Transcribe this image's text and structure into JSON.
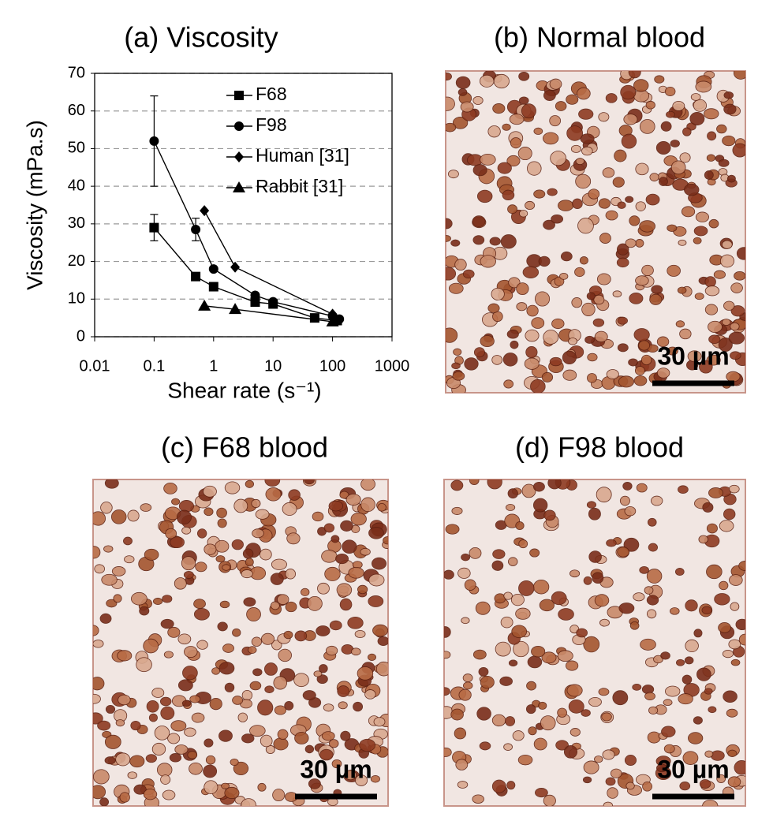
{
  "chart_data": {
    "type": "scatter",
    "title": "(a) Viscosity",
    "xlabel": "Shear rate (s⁻¹)",
    "ylabel": "Viscosity (mPa.s)",
    "xscale": "log",
    "xlim": [
      0.01,
      1000
    ],
    "xticks": [
      0.01,
      0.1,
      1,
      10,
      100,
      1000
    ],
    "ylim": [
      0,
      70
    ],
    "yticks": [
      0,
      10,
      20,
      30,
      40,
      50,
      60,
      70
    ],
    "grid": "y",
    "lines": true,
    "legend": "upper right",
    "series": [
      {
        "name": "F68",
        "marker": "square",
        "color": "#000000",
        "x": [
          0.1,
          0.5,
          1,
          5,
          10,
          50,
          120
        ],
        "values": [
          29,
          16,
          13.3,
          9.2,
          8.7,
          5,
          4.3
        ],
        "errors": [
          3.5,
          null,
          null,
          null,
          null,
          null,
          null
        ]
      },
      {
        "name": "F98",
        "marker": "circle",
        "color": "#000000",
        "x": [
          0.1,
          0.5,
          1,
          5,
          10,
          100,
          130
        ],
        "values": [
          52,
          28.5,
          18,
          11,
          9.3,
          5.5,
          4.7
        ],
        "errors": [
          12,
          3,
          null,
          null,
          null,
          null,
          null
        ]
      },
      {
        "name": "Human [31]",
        "marker": "diamond",
        "color": "#000000",
        "x": [
          0.7,
          2.3,
          100
        ],
        "values": [
          33.5,
          18.5,
          6
        ],
        "errors": [
          null,
          null,
          null
        ]
      },
      {
        "name": "Rabbit [31]",
        "marker": "triangle",
        "color": "#000000",
        "x": [
          0.7,
          2.3,
          100
        ],
        "values": [
          8.2,
          7.3,
          4
        ],
        "errors": [
          null,
          null,
          null
        ]
      }
    ]
  },
  "panels": [
    {
      "title": "(b)  Normal blood",
      "scale_bar": "30 µm"
    },
    {
      "title": "(c)  F68 blood",
      "scale_bar": "30 µm"
    },
    {
      "title": "(d)  F98 blood",
      "scale_bar": "30 µm"
    }
  ]
}
